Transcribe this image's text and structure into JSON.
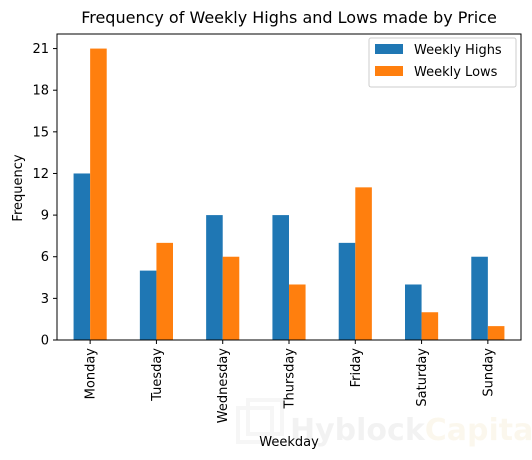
{
  "chart_data": {
    "type": "bar",
    "title": "Frequency of Weekly Highs and Lows made by Price",
    "xlabel": "Weekday",
    "ylabel": "Frequency",
    "categories": [
      "Monday",
      "Tuesday",
      "Wednesday",
      "Thursday",
      "Friday",
      "Saturday",
      "Sunday"
    ],
    "series": [
      {
        "name": "Weekly Highs",
        "color": "#1f77b4",
        "values": [
          12,
          5,
          9,
          9,
          7,
          4,
          6
        ]
      },
      {
        "name": "Weekly Lows",
        "color": "#ff7f0e",
        "values": [
          21,
          7,
          6,
          4,
          11,
          2,
          1
        ]
      }
    ],
    "ylim": [
      0,
      22.05
    ],
    "yticks": [
      0,
      3,
      6,
      9,
      12,
      15,
      18,
      21
    ],
    "grid": false,
    "legend_position": "top-right"
  },
  "watermark": {
    "text_part1": "Hyblock",
    "text_part2": "Capital"
  }
}
